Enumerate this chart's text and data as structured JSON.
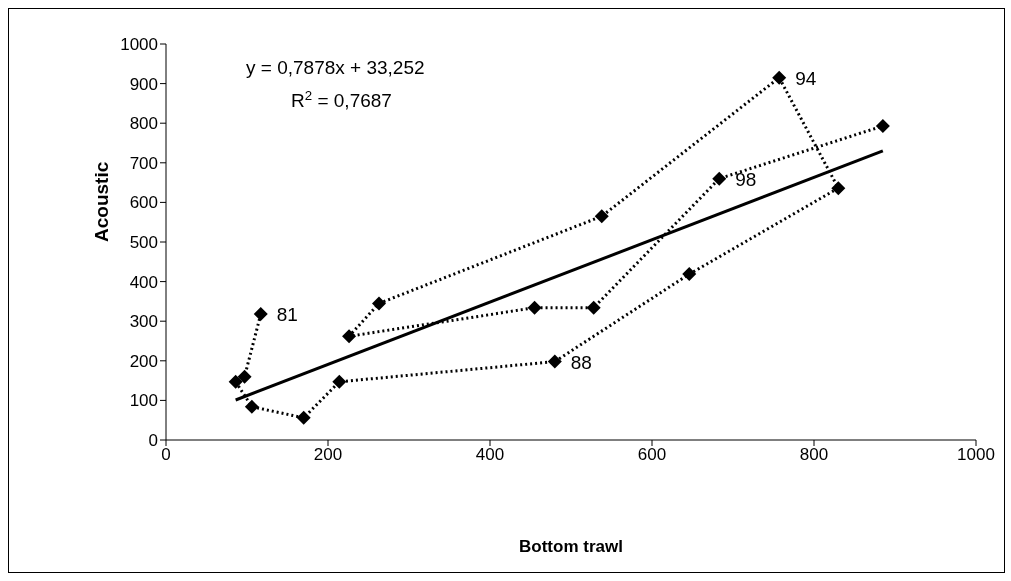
{
  "chart_data": {
    "type": "line",
    "xlabel": "Bottom trawl",
    "ylabel": "Acoustic",
    "xlim": [
      0,
      1000
    ],
    "xticks": [
      0,
      200,
      400,
      600,
      800,
      1000
    ],
    "ylim": [
      0,
      1000
    ],
    "yticks": [
      0,
      100,
      200,
      300,
      400,
      500,
      600,
      700,
      800,
      900,
      1000
    ],
    "grid": false,
    "marker": "diamond",
    "line_style": "dotted",
    "series": [
      {
        "color": "#000000",
        "x": [
          117,
          97,
          86,
          106,
          170,
          214,
          480,
          646,
          830,
          757,
          538,
          263,
          226,
          455,
          528,
          683,
          885
        ],
        "values": [
          318,
          160,
          147,
          84,
          56,
          147,
          198,
          419,
          636,
          915,
          565,
          345,
          262,
          334,
          334,
          660,
          793
        ]
      },
      {
        "color": "#000000",
        "line_style": "solid",
        "marker": "none",
        "x": [
          86,
          885
        ],
        "values": [
          101,
          730
        ]
      }
    ],
    "annotations": [
      "y = 0,7878x + 33,252",
      "R$^{2}$ = 0,7687",
      {
        "text": "81",
        "x": 117,
        "y": 318
      },
      {
        "text": "88",
        "x": 480,
        "y": 198
      },
      {
        "text": "94",
        "x": 757,
        "y": 915
      },
      {
        "text": "98",
        "x": 683,
        "y": 660
      }
    ]
  }
}
